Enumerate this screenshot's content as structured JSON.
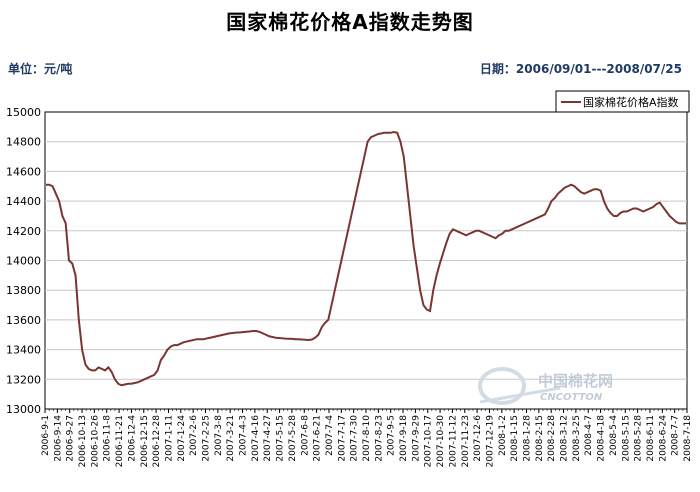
{
  "header": {
    "unit_label": "单位：元/吨",
    "date_label": "日期：2006/09/01---2008/07/25"
  },
  "watermark": {
    "text": "中国棉花网",
    "sub": "CNCOTTON"
  },
  "chart_data": {
    "type": "line",
    "title": "国家棉花价格A指数走势图",
    "xlabel": "",
    "ylabel": "",
    "ylim": [
      13000,
      15000
    ],
    "yticks": [
      13000,
      13200,
      13400,
      13600,
      13800,
      14000,
      14200,
      14400,
      14600,
      14800,
      15000
    ],
    "grid": true,
    "legend_position": "top-right",
    "line_color": "#7a3530",
    "x_ticks": [
      "2006-9-1",
      "2006-9-14",
      "2006-9-27",
      "2006-10-13",
      "2006-10-26",
      "2006-11-8",
      "2006-11-21",
      "2006-12-4",
      "2006-12-15",
      "2006-12-28",
      "2007-1-11",
      "2007-1-24",
      "2007-2-6",
      "2007-2-25",
      "2007-3-8",
      "2007-3-21",
      "2007-4-3",
      "2007-4-16",
      "2007-4-27",
      "2007-5-15",
      "2007-5-28",
      "2007-6-8",
      "2007-6-21",
      "2007-7-4",
      "2007-7-17",
      "2007-7-30",
      "2007-8-10",
      "2007-8-23",
      "2007-9-5",
      "2007-9-18",
      "2007-9-29",
      "2007-10-17",
      "2007-10-30",
      "2007-11-12",
      "2007-11-23",
      "2007-12-6",
      "2007-12-19",
      "2008-1-2",
      "2008-1-15",
      "2008-1-28",
      "2008-2-15",
      "2008-2-28",
      "2008-3-12",
      "2008-3-25",
      "2008-4-7",
      "2008-4-18",
      "2008-5-4",
      "2008-5-15",
      "2008-5-28",
      "2008-6-11",
      "2008-6-24",
      "2008-7-7",
      "2008-7-18"
    ],
    "series": [
      {
        "name": "国家棉花价格A指数",
        "values": [
          14510,
          14510,
          14500,
          14450,
          14400,
          14300,
          14250,
          14000,
          13980,
          13900,
          13600,
          13400,
          13300,
          13270,
          13260,
          13260,
          13280,
          13270,
          13260,
          13280,
          13250,
          13200,
          13170,
          13160,
          13165,
          13170,
          13170,
          13175,
          13180,
          13190,
          13200,
          13210,
          13220,
          13230,
          13260,
          13330,
          13360,
          13400,
          13420,
          13430,
          13430,
          13440,
          13450,
          13455,
          13460,
          13465,
          13470,
          13470,
          13470,
          13475,
          13480,
          13485,
          13490,
          13495,
          13500,
          13505,
          13510,
          13512,
          13515,
          13515,
          13518,
          13520,
          13522,
          13525,
          13525,
          13520,
          13510,
          13500,
          13490,
          13485,
          13480,
          13478,
          13476,
          13474,
          13473,
          13472,
          13470,
          13470,
          13468,
          13466,
          13465,
          13468,
          13480,
          13500,
          13550,
          13580,
          13600,
          13700,
          13800,
          13900,
          14000,
          14100,
          14200,
          14300,
          14400,
          14500,
          14600,
          14700,
          14800,
          14830,
          14840,
          14850,
          14855,
          14860,
          14860,
          14860,
          14865,
          14860,
          14800,
          14700,
          14500,
          14300,
          14100,
          13950,
          13800,
          13700,
          13670,
          13660,
          13800,
          13900,
          13980,
          14050,
          14120,
          14180,
          14210,
          14200,
          14190,
          14180,
          14170,
          14180,
          14190,
          14200,
          14200,
          14190,
          14180,
          14170,
          14160,
          14150,
          14170,
          14180,
          14200,
          14200,
          14210,
          14220,
          14230,
          14240,
          14250,
          14260,
          14270,
          14280,
          14290,
          14300,
          14310,
          14350,
          14400,
          14420,
          14450,
          14470,
          14490,
          14500,
          14510,
          14500,
          14480,
          14460,
          14450,
          14460,
          14470,
          14480,
          14480,
          14470,
          14400,
          14350,
          14320,
          14300,
          14300,
          14320,
          14330,
          14330,
          14340,
          14350,
          14350,
          14340,
          14330,
          14340,
          14350,
          14360,
          14380,
          14390,
          14360,
          14330,
          14300,
          14280,
          14260,
          14250,
          14250,
          14250
        ]
      }
    ]
  }
}
